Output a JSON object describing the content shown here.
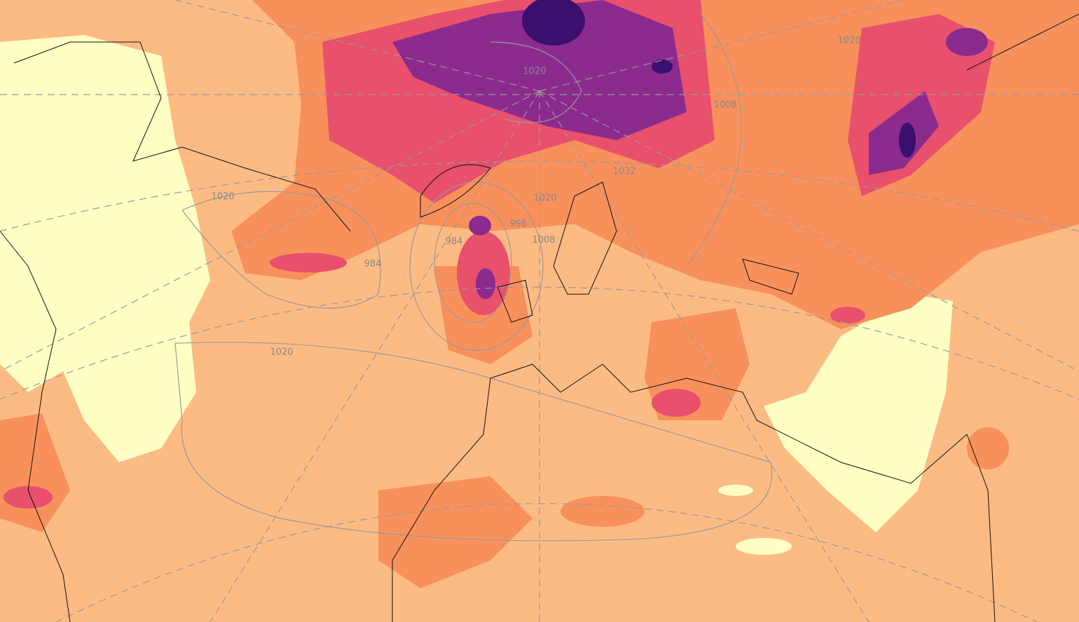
{
  "map": {
    "isobar_labels": [
      "1020",
      "1020",
      "1020",
      "1020",
      "1008",
      "1008",
      "996",
      "984",
      "1032",
      "1020",
      "984"
    ]
  }
}
